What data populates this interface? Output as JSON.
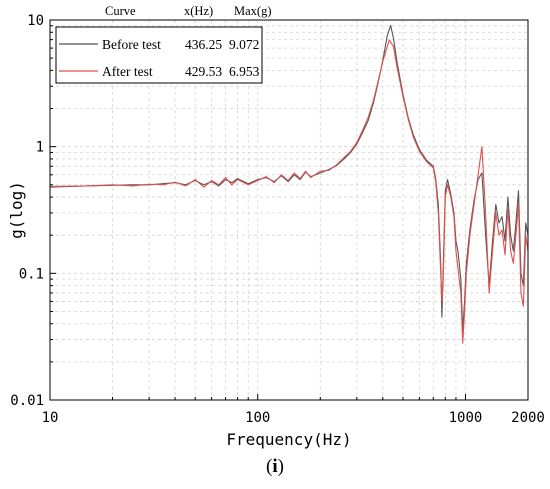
{
  "caption": {
    "open": "(",
    "letter": "i",
    "close": ")"
  },
  "chart_data": {
    "type": "line",
    "title": "",
    "xlabel": "Frequency(Hz)",
    "ylabel": "g(log)",
    "x_scale": "log",
    "y_scale": "log",
    "xlim": [
      10,
      2000
    ],
    "ylim": [
      0.01,
      10
    ],
    "x_ticks": [
      {
        "value": 10,
        "label": "10"
      },
      {
        "value": 100,
        "label": "100"
      },
      {
        "value": 1000,
        "label": "1000"
      },
      {
        "value": 2000,
        "label": "2000"
      }
    ],
    "y_ticks": [
      {
        "value": 10,
        "label": "10"
      },
      {
        "value": 1,
        "label": "1"
      },
      {
        "value": 0.1,
        "label": "0.1"
      },
      {
        "value": 0.01,
        "label": "0.01"
      }
    ],
    "grid": "dashed minor grid on both axes",
    "legend": {
      "position": "top-left",
      "headers": [
        "Curve",
        "x(Hz)",
        "Max(g)"
      ],
      "rows": [
        {
          "name": "Before test",
          "x": "436.25",
          "max": "9.072",
          "color": "#555555"
        },
        {
          "name": "After test",
          "x": "429.53",
          "max": "6.953",
          "color": "#e05050"
        }
      ]
    },
    "series": [
      {
        "name": "Before test",
        "color": "#555555",
        "points": [
          [
            10,
            0.48
          ],
          [
            15,
            0.49
          ],
          [
            20,
            0.495
          ],
          [
            25,
            0.5
          ],
          [
            30,
            0.5
          ],
          [
            35,
            0.51
          ],
          [
            40,
            0.52
          ],
          [
            45,
            0.5
          ],
          [
            50,
            0.54
          ],
          [
            55,
            0.5
          ],
          [
            60,
            0.53
          ],
          [
            65,
            0.49
          ],
          [
            70,
            0.55
          ],
          [
            75,
            0.52
          ],
          [
            80,
            0.56
          ],
          [
            90,
            0.51
          ],
          [
            100,
            0.55
          ],
          [
            110,
            0.57
          ],
          [
            120,
            0.53
          ],
          [
            130,
            0.59
          ],
          [
            140,
            0.53
          ],
          [
            150,
            0.6
          ],
          [
            160,
            0.55
          ],
          [
            170,
            0.63
          ],
          [
            180,
            0.58
          ],
          [
            200,
            0.62
          ],
          [
            220,
            0.66
          ],
          [
            240,
            0.71
          ],
          [
            260,
            0.8
          ],
          [
            280,
            0.9
          ],
          [
            300,
            1.05
          ],
          [
            320,
            1.3
          ],
          [
            340,
            1.6
          ],
          [
            360,
            2.2
          ],
          [
            380,
            3.2
          ],
          [
            400,
            4.8
          ],
          [
            420,
            7.5
          ],
          [
            436.25,
            9.072
          ],
          [
            450,
            7.2
          ],
          [
            470,
            4.5
          ],
          [
            500,
            2.6
          ],
          [
            530,
            1.7
          ],
          [
            560,
            1.25
          ],
          [
            600,
            0.95
          ],
          [
            650,
            0.78
          ],
          [
            700,
            0.7
          ],
          [
            720,
            0.55
          ],
          [
            740,
            0.35
          ],
          [
            760,
            0.12
          ],
          [
            770,
            0.045
          ],
          [
            780,
            0.1
          ],
          [
            800,
            0.45
          ],
          [
            820,
            0.55
          ],
          [
            850,
            0.42
          ],
          [
            880,
            0.3
          ],
          [
            900,
            0.18
          ],
          [
            920,
            0.15
          ],
          [
            950,
            0.09
          ],
          [
            970,
            0.035
          ],
          [
            990,
            0.06
          ],
          [
            1010,
            0.12
          ],
          [
            1050,
            0.22
          ],
          [
            1100,
            0.38
          ],
          [
            1150,
            0.55
          ],
          [
            1200,
            0.62
          ],
          [
            1250,
            0.2
          ],
          [
            1300,
            0.08
          ],
          [
            1350,
            0.18
          ],
          [
            1400,
            0.35
          ],
          [
            1450,
            0.25
          ],
          [
            1500,
            0.28
          ],
          [
            1550,
            0.18
          ],
          [
            1600,
            0.4
          ],
          [
            1650,
            0.2
          ],
          [
            1700,
            0.15
          ],
          [
            1750,
            0.25
          ],
          [
            1800,
            0.45
          ],
          [
            1850,
            0.1
          ],
          [
            1900,
            0.08
          ],
          [
            1950,
            0.25
          ],
          [
            2000,
            0.2
          ]
        ]
      },
      {
        "name": "After test",
        "color": "#e05050",
        "points": [
          [
            10,
            0.485
          ],
          [
            15,
            0.49
          ],
          [
            20,
            0.5
          ],
          [
            25,
            0.49
          ],
          [
            30,
            0.505
          ],
          [
            35,
            0.5
          ],
          [
            40,
            0.525
          ],
          [
            45,
            0.49
          ],
          [
            50,
            0.55
          ],
          [
            55,
            0.48
          ],
          [
            60,
            0.54
          ],
          [
            65,
            0.5
          ],
          [
            70,
            0.57
          ],
          [
            75,
            0.5
          ],
          [
            80,
            0.55
          ],
          [
            90,
            0.5
          ],
          [
            100,
            0.54
          ],
          [
            110,
            0.58
          ],
          [
            120,
            0.52
          ],
          [
            130,
            0.6
          ],
          [
            140,
            0.54
          ],
          [
            150,
            0.62
          ],
          [
            160,
            0.56
          ],
          [
            170,
            0.64
          ],
          [
            180,
            0.57
          ],
          [
            200,
            0.64
          ],
          [
            220,
            0.65
          ],
          [
            240,
            0.72
          ],
          [
            260,
            0.82
          ],
          [
            280,
            0.92
          ],
          [
            300,
            1.08
          ],
          [
            320,
            1.35
          ],
          [
            340,
            1.7
          ],
          [
            360,
            2.3
          ],
          [
            380,
            3.3
          ],
          [
            400,
            4.7
          ],
          [
            429.53,
            6.953
          ],
          [
            450,
            6.2
          ],
          [
            470,
            4.1
          ],
          [
            500,
            2.5
          ],
          [
            530,
            1.65
          ],
          [
            560,
            1.2
          ],
          [
            600,
            0.92
          ],
          [
            650,
            0.76
          ],
          [
            700,
            0.68
          ],
          [
            720,
            0.52
          ],
          [
            740,
            0.3
          ],
          [
            760,
            0.1
          ],
          [
            770,
            0.06
          ],
          [
            780,
            0.08
          ],
          [
            800,
            0.4
          ],
          [
            820,
            0.5
          ],
          [
            850,
            0.4
          ],
          [
            880,
            0.28
          ],
          [
            900,
            0.15
          ],
          [
            920,
            0.11
          ],
          [
            950,
            0.07
          ],
          [
            970,
            0.028
          ],
          [
            990,
            0.05
          ],
          [
            1010,
            0.1
          ],
          [
            1050,
            0.2
          ],
          [
            1100,
            0.35
          ],
          [
            1150,
            0.6
          ],
          [
            1200,
            1.0
          ],
          [
            1250,
            0.3
          ],
          [
            1300,
            0.07
          ],
          [
            1350,
            0.15
          ],
          [
            1400,
            0.3
          ],
          [
            1450,
            0.2
          ],
          [
            1500,
            0.22
          ],
          [
            1550,
            0.14
          ],
          [
            1600,
            0.32
          ],
          [
            1650,
            0.15
          ],
          [
            1700,
            0.12
          ],
          [
            1750,
            0.2
          ],
          [
            1800,
            0.35
          ],
          [
            1850,
            0.07
          ],
          [
            1900,
            0.055
          ],
          [
            1950,
            0.2
          ],
          [
            2000,
            0.15
          ]
        ]
      }
    ]
  }
}
